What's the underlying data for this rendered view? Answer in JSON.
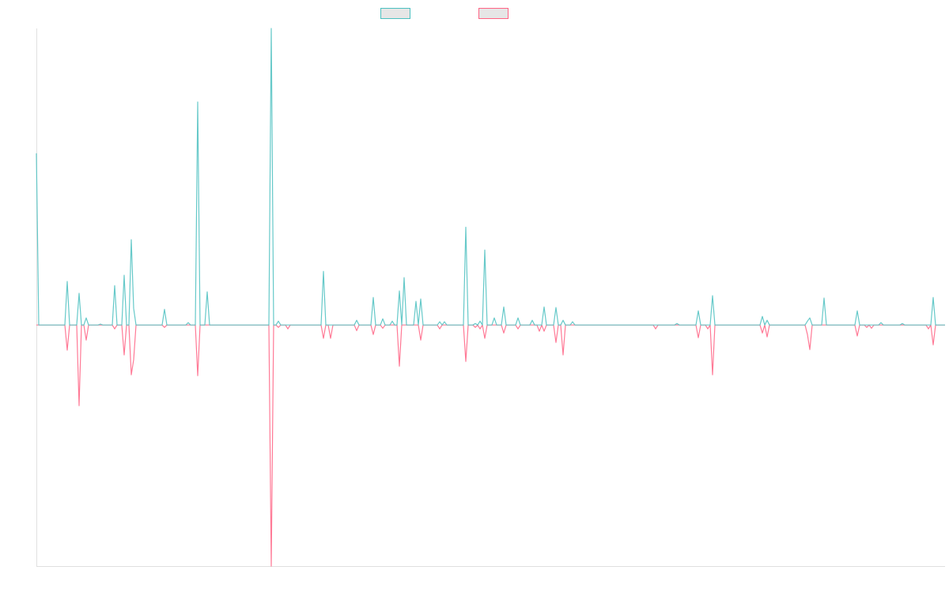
{
  "chart_data": {
    "type": "line",
    "title": "",
    "xlabel": "",
    "ylabel": "",
    "num_points": 384,
    "ylim": [
      -81.3,
      100
    ],
    "grid": false,
    "legend_position": "top",
    "series": [
      {
        "name": "",
        "color": "#4bc0c0",
        "points": [
          [
            0,
            57.9
          ],
          [
            13,
            14.7
          ],
          [
            18,
            10.7
          ],
          [
            21,
            2.4
          ],
          [
            27,
            0.3
          ],
          [
            33,
            13.3
          ],
          [
            37,
            16.8
          ],
          [
            40,
            28.8
          ],
          [
            41,
            5.6
          ],
          [
            54,
            5.3
          ],
          [
            64,
            0.8
          ],
          [
            68,
            75.2
          ],
          [
            72,
            11.2
          ],
          [
            99,
            100
          ],
          [
            102,
            1.3
          ],
          [
            121,
            18.1
          ],
          [
            135,
            1.6
          ],
          [
            142,
            9.3
          ],
          [
            146,
            2.1
          ],
          [
            150,
            1.3
          ],
          [
            153,
            11.5
          ],
          [
            155,
            16
          ],
          [
            160,
            8
          ],
          [
            162,
            8.8
          ],
          [
            170,
            1.1
          ],
          [
            172,
            1.1
          ],
          [
            181,
            33
          ],
          [
            185,
            0.5
          ],
          [
            187,
            1.3
          ],
          [
            189,
            25.3
          ],
          [
            193,
            2.4
          ],
          [
            197,
            6.1
          ],
          [
            203,
            2.4
          ],
          [
            209,
            1.6
          ],
          [
            214,
            6.1
          ],
          [
            219,
            5.9
          ],
          [
            222,
            1.6
          ],
          [
            226,
            1.1
          ],
          [
            270,
            0.5
          ],
          [
            279,
            4.8
          ],
          [
            285,
            9.9
          ],
          [
            306,
            2.9
          ],
          [
            308,
            1.6
          ],
          [
            325,
            1.3
          ],
          [
            326,
            2.4
          ],
          [
            332,
            9.1
          ],
          [
            346,
            4.8
          ],
          [
            356,
            0.8
          ],
          [
            365,
            0.5
          ],
          [
            378,
            9.3
          ]
        ]
      },
      {
        "name": "",
        "color": "#ff6384",
        "points": [
          [
            13,
            -8.5
          ],
          [
            18,
            -27.2
          ],
          [
            21,
            -5.1
          ],
          [
            33,
            -1.3
          ],
          [
            37,
            -10.1
          ],
          [
            40,
            -16.8
          ],
          [
            41,
            -11.7
          ],
          [
            54,
            -0.8
          ],
          [
            68,
            -17.1
          ],
          [
            99,
            -81.3
          ],
          [
            102,
            -0.8
          ],
          [
            106,
            -1.3
          ],
          [
            121,
            -4.5
          ],
          [
            124,
            -4.5
          ],
          [
            135,
            -1.9
          ],
          [
            142,
            -3.2
          ],
          [
            146,
            -1.1
          ],
          [
            153,
            -13.9
          ],
          [
            162,
            -5.1
          ],
          [
            170,
            -1.3
          ],
          [
            181,
            -12.3
          ],
          [
            185,
            -0.8
          ],
          [
            187,
            -1.3
          ],
          [
            189,
            -4.5
          ],
          [
            197,
            -2.7
          ],
          [
            203,
            -1.3
          ],
          [
            212,
            -2.1
          ],
          [
            214,
            -2.1
          ],
          [
            219,
            -5.9
          ],
          [
            222,
            -10.1
          ],
          [
            261,
            -1.3
          ],
          [
            279,
            -4.3
          ],
          [
            283,
            -1.3
          ],
          [
            285,
            -16.8
          ],
          [
            306,
            -2.7
          ],
          [
            308,
            -4
          ],
          [
            325,
            -3.2
          ],
          [
            326,
            -8.3
          ],
          [
            346,
            -3.7
          ],
          [
            350,
            -0.8
          ],
          [
            352,
            -1.1
          ],
          [
            376,
            -1.3
          ],
          [
            378,
            -6.7
          ]
        ]
      }
    ]
  }
}
